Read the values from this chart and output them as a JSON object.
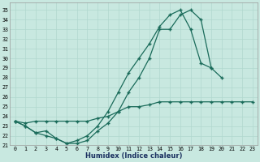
{
  "background_color": "#c8e8e0",
  "grid_color": "#b0d8ce",
  "line_color": "#1a6b5a",
  "xlim": [
    -0.5,
    23.5
  ],
  "ylim": [
    21.0,
    35.8
  ],
  "xticks": [
    0,
    1,
    2,
    3,
    4,
    5,
    6,
    7,
    8,
    9,
    10,
    11,
    12,
    13,
    14,
    15,
    16,
    17,
    18,
    19,
    20,
    21,
    22,
    23
  ],
  "yticks": [
    21,
    22,
    23,
    24,
    25,
    26,
    27,
    28,
    29,
    30,
    31,
    32,
    33,
    34,
    35
  ],
  "xlabel": "Humidex (Indice chaleur)",
  "curve1_x": [
    0,
    1,
    2,
    3,
    4,
    5,
    6,
    7,
    8,
    9,
    10,
    11,
    12,
    13,
    14,
    15,
    16,
    17,
    18,
    19,
    20
  ],
  "curve1_y": [
    23.5,
    23.0,
    22.3,
    22.5,
    21.7,
    21.2,
    21.2,
    21.5,
    22.5,
    23.3,
    24.5,
    26.5,
    28.0,
    30.0,
    33.0,
    33.0,
    34.5,
    35.0,
    34.0,
    29.0,
    28.0
  ],
  "curve2_x": [
    0,
    1,
    2,
    3,
    4,
    5,
    6,
    7,
    8,
    9,
    10,
    11,
    12,
    13,
    14,
    15,
    16,
    17,
    18,
    19,
    20
  ],
  "curve2_y": [
    23.5,
    23.0,
    22.3,
    22.0,
    21.7,
    21.2,
    21.5,
    22.0,
    23.0,
    24.5,
    26.5,
    28.5,
    30.0,
    31.5,
    33.3,
    34.5,
    35.0,
    33.0,
    29.5,
    29.0,
    null
  ],
  "curve3_x": [
    0,
    1,
    2,
    3,
    4,
    5,
    6,
    7,
    8,
    9,
    10,
    11,
    12,
    13,
    14,
    15,
    16,
    17,
    18,
    19,
    20,
    21,
    22,
    23
  ],
  "curve3_y": [
    23.5,
    23.3,
    23.5,
    23.5,
    23.5,
    23.5,
    23.5,
    23.5,
    23.8,
    24.0,
    24.5,
    25.0,
    25.0,
    25.2,
    25.5,
    25.5,
    25.5,
    25.5,
    25.5,
    25.5,
    25.5,
    25.5,
    25.5,
    25.5
  ]
}
